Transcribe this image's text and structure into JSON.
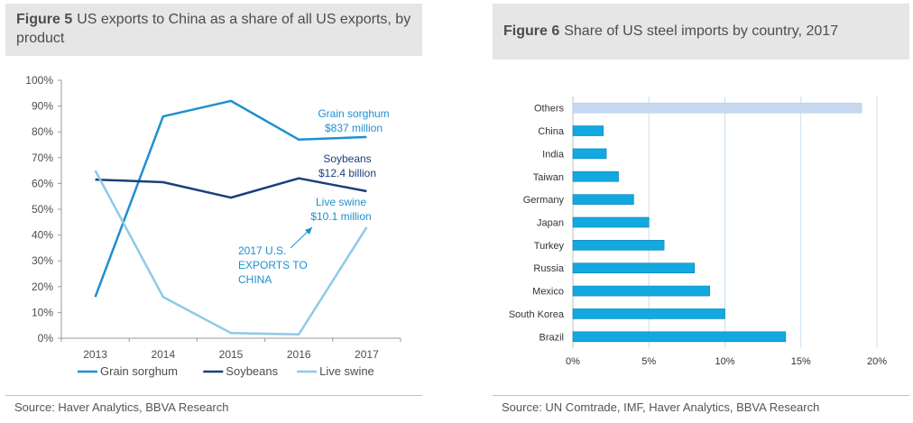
{
  "figure5": {
    "fig_label": "Figure 5",
    "title": "US exports to China as a share of all US exports, by product",
    "source": "Source: Haver Analytics, BBVA Research"
  },
  "figure6": {
    "fig_label": "Figure 6",
    "title": "Share of US steel imports by country, 2017",
    "source": "Source:  UN Comtrade, IMF, Haver Analytics, BBVA Research"
  },
  "chart_data": [
    {
      "type": "line",
      "x": [
        "2013",
        "2014",
        "2015",
        "2016",
        "2017"
      ],
      "ylim": [
        0,
        100
      ],
      "yticks": [
        "0%",
        "10%",
        "20%",
        "30%",
        "40%",
        "50%",
        "60%",
        "70%",
        "80%",
        "90%",
        "100%"
      ],
      "series": [
        {
          "name": "Grain sorghum",
          "color": "#1f8fcf",
          "values": [
            16,
            86,
            92,
            77,
            78
          ]
        },
        {
          "name": "Soybeans",
          "color": "#1b3f7d",
          "values": [
            61.5,
            60.5,
            54.5,
            62,
            57
          ]
        },
        {
          "name": "Live swine",
          "color": "#8ecae8",
          "values": [
            65,
            16,
            2,
            1.5,
            43
          ]
        }
      ],
      "annotations": {
        "grain": [
          "Grain sorghum",
          "$837 million"
        ],
        "soy": [
          "Soybeans",
          "$12.4 billion"
        ],
        "swine": [
          "Live swine",
          "$10.1 million"
        ],
        "exports": [
          "2017 U.S.",
          "EXPORTS TO",
          "CHINA"
        ]
      },
      "legend_position": "bottom",
      "grid": false
    },
    {
      "type": "bar",
      "orientation": "horizontal",
      "categories": [
        "Others",
        "China",
        "India",
        "Taiwan",
        "Germany",
        "Japan",
        "Turkey",
        "Russia",
        "Mexico",
        "South Korea",
        "Brazil"
      ],
      "values": [
        19,
        2,
        2.2,
        3,
        4,
        5,
        6,
        8,
        9,
        10,
        14
      ],
      "xlim": [
        0,
        20
      ],
      "xticks": [
        "0%",
        "5%",
        "10%",
        "15%",
        "20%"
      ],
      "colors": {
        "bar": "#12a9e0",
        "others": "#c6d9f0",
        "grid": "#c9dff2"
      },
      "grid": true
    }
  ]
}
